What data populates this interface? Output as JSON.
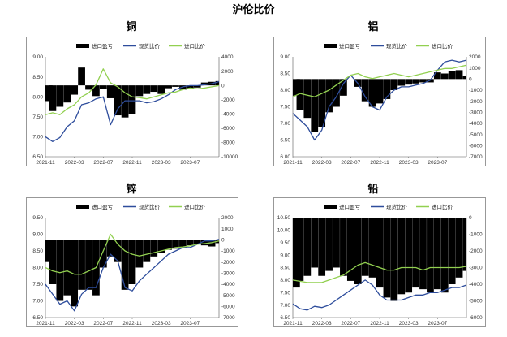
{
  "page": {
    "title": "沪伦比价"
  },
  "colors": {
    "profit": "#000000",
    "spot": "#2e4d9c",
    "import": "#92d050",
    "frame": "#7f7f7f"
  },
  "chart_data": [
    {
      "type": "area+line",
      "title": "铜",
      "legend": [
        "进口盈亏",
        "现货比价",
        "进口比价"
      ],
      "legend_position": "top",
      "x_ticks": [
        "2021-11",
        "2022-03",
        "2022-07",
        "2022-11",
        "2023-03",
        "2023-07"
      ],
      "x_range": [
        "2021-11",
        "2023-11"
      ],
      "y_left": {
        "range": [
          6.5,
          9.0
        ],
        "ticks": [
          "6.50",
          "7.00",
          "7.50",
          "8.00",
          "8.50",
          "9.00"
        ]
      },
      "y_right": {
        "range": [
          -10000,
          4000
        ],
        "ticks": [
          "4000",
          "2000",
          "0",
          "-2000",
          "-4000",
          "-6000",
          "-8000",
          "-10000"
        ]
      },
      "x": [
        "2021-11",
        "2021-12",
        "2022-01",
        "2022-02",
        "2022-03",
        "2022-04",
        "2022-05",
        "2022-06",
        "2022-07",
        "2022-08",
        "2022-09",
        "2022-10",
        "2022-11",
        "2022-12",
        "2023-01",
        "2023-02",
        "2023-03",
        "2023-04",
        "2023-05",
        "2023-06",
        "2023-07",
        "2023-08",
        "2023-09",
        "2023-10",
        "2023-11"
      ],
      "series": [
        {
          "name": "进口盈亏",
          "axis": "right",
          "kind": "area",
          "values": [
            -2200,
            -3600,
            -3000,
            -2400,
            -1300,
            2500,
            -600,
            -1500,
            -500,
            -1800,
            -4200,
            -4500,
            -4000,
            -1500,
            -1200,
            -900,
            -1200,
            -400,
            -200,
            -600,
            -500,
            -300,
            400,
            500,
            600
          ]
        },
        {
          "name": "现货比价",
          "axis": "left",
          "kind": "line",
          "values": [
            7.0,
            6.88,
            6.98,
            7.25,
            7.4,
            7.8,
            7.85,
            7.95,
            8.0,
            7.3,
            7.7,
            7.9,
            7.9,
            7.9,
            7.85,
            7.88,
            7.95,
            8.05,
            8.18,
            8.25,
            8.28,
            8.28,
            8.3,
            8.33,
            8.38
          ]
        },
        {
          "name": "进口比价",
          "axis": "left",
          "kind": "line",
          "values": [
            7.55,
            7.6,
            7.55,
            7.7,
            7.8,
            8.0,
            8.1,
            8.3,
            8.7,
            8.35,
            8.25,
            8.1,
            8.0,
            7.98,
            7.95,
            8.0,
            8.05,
            8.1,
            8.12,
            8.18,
            8.22,
            8.2,
            8.22,
            8.25,
            8.28
          ]
        }
      ]
    },
    {
      "type": "area+line",
      "title": "铝",
      "legend": [
        "进口盈亏",
        "现货比价",
        "进口比价"
      ],
      "legend_position": "top",
      "x_ticks": [
        "2021-11",
        "2022-03",
        "2022-07",
        "2022-11",
        "2023-03",
        "2023-07"
      ],
      "x_range": [
        "2021-11",
        "2023-11"
      ],
      "y_left": {
        "range": [
          6.0,
          9.0
        ],
        "ticks": [
          "6.00",
          "6.50",
          "7.00",
          "7.50",
          "8.00",
          "8.50",
          "9.00"
        ]
      },
      "y_right": {
        "range": [
          -7000,
          2000
        ],
        "ticks": [
          "2000",
          "1000",
          "0",
          "-1000",
          "-2000",
          "-3000",
          "-4000",
          "-5000",
          "-6000",
          "-7000"
        ]
      },
      "x": [
        "2021-11",
        "2021-12",
        "2022-01",
        "2022-02",
        "2022-03",
        "2022-04",
        "2022-05",
        "2022-06",
        "2022-07",
        "2022-08",
        "2022-09",
        "2022-10",
        "2022-11",
        "2022-12",
        "2023-01",
        "2023-02",
        "2023-03",
        "2023-04",
        "2023-05",
        "2023-06",
        "2023-07",
        "2023-08",
        "2023-09",
        "2023-10",
        "2023-11"
      ],
      "series": [
        {
          "name": "进口盈亏",
          "axis": "right",
          "kind": "area",
          "values": [
            -1500,
            -2800,
            -3500,
            -4800,
            -4300,
            -3000,
            -2500,
            -1500,
            0,
            -700,
            -2000,
            -2500,
            -2200,
            -1800,
            -1000,
            -600,
            -500,
            -400,
            -300,
            -300,
            600,
            500,
            700,
            800,
            300
          ]
        },
        {
          "name": "现货比价",
          "axis": "left",
          "kind": "line",
          "values": [
            7.3,
            7.1,
            6.9,
            6.5,
            6.8,
            7.5,
            7.8,
            8.2,
            8.45,
            8.2,
            7.8,
            7.5,
            7.4,
            7.8,
            8.0,
            8.1,
            8.1,
            8.15,
            8.2,
            8.3,
            8.6,
            8.85,
            8.9,
            8.85,
            8.9
          ]
        },
        {
          "name": "进口比价",
          "axis": "left",
          "kind": "line",
          "values": [
            7.8,
            7.9,
            7.85,
            7.8,
            7.9,
            8.0,
            8.15,
            8.3,
            8.45,
            8.5,
            8.4,
            8.35,
            8.4,
            8.45,
            8.5,
            8.45,
            8.4,
            8.45,
            8.5,
            8.55,
            8.6,
            8.65,
            8.65,
            8.7,
            8.75
          ]
        }
      ]
    },
    {
      "type": "area+line",
      "title": "锌",
      "legend": [
        "进口盈亏",
        "现货比价",
        "进口比价"
      ],
      "legend_position": "top",
      "x_ticks": [
        "2021-11",
        "2022-03",
        "2022-07",
        "2022-11",
        "2023-03",
        "2023-07"
      ],
      "x_range": [
        "2021-11",
        "2023-11"
      ],
      "y_left": {
        "range": [
          6.5,
          9.5
        ],
        "ticks": [
          "6.50",
          "7.00",
          "7.50",
          "8.00",
          "8.50",
          "9.00",
          "9.50"
        ]
      },
      "y_right": {
        "range": [
          -7000,
          2000
        ],
        "ticks": [
          "2000",
          "1000",
          "0",
          "-1000",
          "-2000",
          "-3000",
          "-4000",
          "-5000",
          "-6000",
          "-7000"
        ]
      },
      "x": [
        "2021-11",
        "2021-12",
        "2022-01",
        "2022-02",
        "2022-03",
        "2022-04",
        "2022-05",
        "2022-06",
        "2022-07",
        "2022-08",
        "2022-09",
        "2022-10",
        "2022-11",
        "2022-12",
        "2023-01",
        "2023-02",
        "2023-03",
        "2023-04",
        "2023-05",
        "2023-06",
        "2023-07",
        "2023-08",
        "2023-09",
        "2023-10",
        "2023-11"
      ],
      "series": [
        {
          "name": "进口盈亏",
          "axis": "right",
          "kind": "area",
          "values": [
            -2000,
            -4000,
            -5500,
            -5000,
            -6000,
            -4500,
            -4500,
            -5000,
            -2500,
            -1500,
            -2000,
            -4500,
            -4000,
            -2500,
            -2000,
            -1500,
            -1200,
            -900,
            -800,
            -700,
            -500,
            -400,
            -500,
            -600,
            -300
          ]
        },
        {
          "name": "现货比价",
          "axis": "left",
          "kind": "line",
          "values": [
            7.5,
            7.2,
            6.9,
            7.0,
            6.7,
            7.2,
            7.4,
            7.4,
            8.0,
            8.4,
            8.2,
            7.4,
            7.3,
            7.6,
            7.8,
            8.0,
            8.2,
            8.4,
            8.5,
            8.6,
            8.6,
            8.7,
            8.8,
            8.8,
            8.85
          ]
        },
        {
          "name": "进口比价",
          "axis": "left",
          "kind": "line",
          "values": [
            8.0,
            7.9,
            7.85,
            7.9,
            7.8,
            7.8,
            7.9,
            8.0,
            8.5,
            9.0,
            8.7,
            8.5,
            8.4,
            8.35,
            8.4,
            8.45,
            8.5,
            8.55,
            8.6,
            8.62,
            8.65,
            8.7,
            8.72,
            8.75,
            8.8
          ]
        }
      ]
    },
    {
      "type": "area+line",
      "title": "铅",
      "legend": [
        "进口盈亏",
        "现货比价",
        "进口比价"
      ],
      "legend_position": "top",
      "x_ticks": [
        "2021-11",
        "2022-03",
        "2022-07",
        "2022-11",
        "2023-03",
        "2023-07"
      ],
      "x_range": [
        "2021-11",
        "2023-11"
      ],
      "y_left": {
        "range": [
          6.5,
          10.5
        ],
        "ticks": [
          "6.50",
          "7.00",
          "7.50",
          "8.00",
          "8.50",
          "9.00",
          "9.50",
          "10.00",
          "10.50"
        ]
      },
      "y_right": {
        "range": [
          -6000,
          0
        ],
        "ticks": [
          "0",
          "-1000",
          "-2000",
          "-3000",
          "-4000",
          "-5000",
          "-6000"
        ]
      },
      "x": [
        "2021-11",
        "2021-12",
        "2022-01",
        "2022-02",
        "2022-03",
        "2022-04",
        "2022-05",
        "2022-06",
        "2022-07",
        "2022-08",
        "2022-09",
        "2022-10",
        "2022-11",
        "2022-12",
        "2023-01",
        "2023-02",
        "2023-03",
        "2023-04",
        "2023-05",
        "2023-06",
        "2023-07",
        "2023-08",
        "2023-09",
        "2023-10",
        "2023-11"
      ],
      "series": [
        {
          "name": "进口盈亏",
          "axis": "right",
          "kind": "area",
          "values": [
            -4200,
            -3800,
            -3500,
            -3000,
            -3500,
            -3200,
            -3000,
            -3500,
            -3800,
            -4000,
            -3500,
            -3600,
            -4200,
            -4800,
            -5000,
            -4600,
            -4500,
            -4200,
            -4300,
            -4500,
            -4300,
            -4500,
            -4000,
            -3600,
            -3200
          ]
        },
        {
          "name": "现货比价",
          "axis": "left",
          "kind": "line",
          "values": [
            7.05,
            6.85,
            6.8,
            6.95,
            6.9,
            7.0,
            7.2,
            7.4,
            7.6,
            7.8,
            8.0,
            7.8,
            7.4,
            7.2,
            7.2,
            7.2,
            7.3,
            7.4,
            7.4,
            7.5,
            7.5,
            7.6,
            7.7,
            7.7,
            7.8
          ]
        },
        {
          "name": "进口比价",
          "axis": "left",
          "kind": "line",
          "values": [
            8.0,
            7.95,
            7.9,
            7.9,
            7.9,
            8.0,
            8.1,
            8.2,
            8.4,
            8.6,
            8.7,
            8.6,
            8.5,
            8.4,
            8.4,
            8.5,
            8.5,
            8.5,
            8.4,
            8.5,
            8.5,
            8.5,
            8.5,
            8.5,
            8.55
          ]
        }
      ]
    }
  ]
}
